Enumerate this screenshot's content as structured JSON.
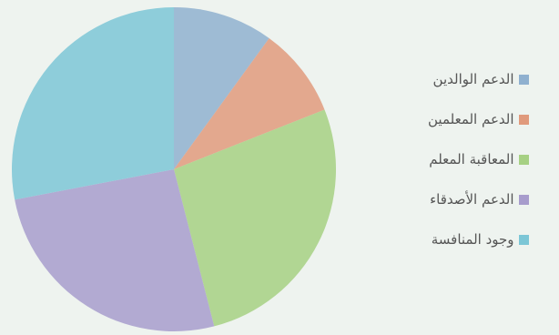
{
  "chart_data": {
    "type": "pie",
    "start_angle_deg": 0,
    "direction": "clockwise",
    "slices": [
      {
        "label": "الدعم الوالدين",
        "value": 10,
        "color": "#8fb0cf"
      },
      {
        "label": "الدعم المعلمين",
        "value": 9,
        "color": "#e09a7c"
      },
      {
        "label": "المعاقبة المعلم",
        "value": 27,
        "color": "#a6d083"
      },
      {
        "label": "الدعم الأصدقاء",
        "value": 26,
        "color": "#a79ccc"
      },
      {
        "label": "وجود المنافسة",
        "value": 28,
        "color": "#7cc6d6"
      }
    ],
    "legend_position": "right"
  }
}
